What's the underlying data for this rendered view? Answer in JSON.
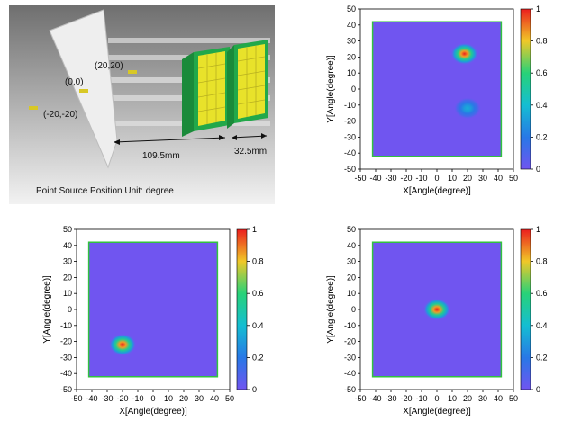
{
  "setup": {
    "positions": [
      {
        "label": "(20,20)"
      },
      {
        "label": "(0,0)"
      },
      {
        "label": "(-20,-20)"
      }
    ],
    "dim_long": "109.5mm",
    "dim_short": "32.5mm",
    "caption": "Point Source Position Unit: degree",
    "colors": {
      "background_top": "#6f6f6f",
      "background_bottom": "#f2f2f2",
      "crystal": "#e8e22a",
      "frame": "#22a84a",
      "rod": "#c8c8c8"
    }
  },
  "chart_data": [
    {
      "type": "heatmap",
      "title": "",
      "xlabel": "X[Angle(degree)]",
      "ylabel": "Y[Angle(degree)]",
      "xlim": [
        -50,
        50
      ],
      "ylim": [
        -50,
        50
      ],
      "x_ticks": [
        "-50",
        "-40",
        "-30",
        "-20",
        "-10",
        "0",
        "10",
        "20",
        "30",
        "40",
        "50"
      ],
      "y_ticks": [
        "-50",
        "-40",
        "-30",
        "-20",
        "-10",
        "0",
        "10",
        "20",
        "30",
        "40",
        "50"
      ],
      "colorbar_ticks": [
        "0",
        "0.2",
        "0.4",
        "0.6",
        "0.8",
        "1"
      ],
      "colorbar_range": [
        0,
        1
      ],
      "field_of_view": [
        -42,
        42
      ],
      "peaks": [
        {
          "x": 18,
          "y": 22,
          "value": 1.0
        },
        {
          "x": 20,
          "y": -12,
          "value": 0.35
        }
      ],
      "colors": {
        "background": "#7055f0",
        "frame": "#31c23f"
      }
    },
    {
      "type": "heatmap",
      "title": "",
      "xlabel": "X[Angle(degree)]",
      "ylabel": "Y[Angle(degree)]",
      "xlim": [
        -50,
        50
      ],
      "ylim": [
        -50,
        50
      ],
      "x_ticks": [
        "-50",
        "-40",
        "-30",
        "-20",
        "-10",
        "0",
        "10",
        "20",
        "30",
        "40",
        "50"
      ],
      "y_ticks": [
        "-50",
        "-40",
        "-30",
        "-20",
        "-10",
        "0",
        "10",
        "20",
        "30",
        "40",
        "50"
      ],
      "colorbar_ticks": [
        "0",
        "0.2",
        "0.4",
        "0.6",
        "0.8",
        "1"
      ],
      "colorbar_range": [
        0,
        1
      ],
      "field_of_view": [
        -42,
        42
      ],
      "peaks": [
        {
          "x": -20,
          "y": -22,
          "value": 1.0
        }
      ],
      "colors": {
        "background": "#7055f0",
        "frame": "#31c23f"
      }
    },
    {
      "type": "heatmap",
      "title": "",
      "xlabel": "X[Angle(degree)]",
      "ylabel": "Y[Angle(degree)]",
      "xlim": [
        -50,
        50
      ],
      "ylim": [
        -50,
        50
      ],
      "x_ticks": [
        "-50",
        "-40",
        "-30",
        "-20",
        "-10",
        "0",
        "10",
        "20",
        "30",
        "40",
        "50"
      ],
      "y_ticks": [
        "-50",
        "-40",
        "-30",
        "-20",
        "-10",
        "0",
        "10",
        "20",
        "30",
        "40",
        "50"
      ],
      "colorbar_ticks": [
        "0",
        "0.2",
        "0.4",
        "0.6",
        "0.8",
        "1"
      ],
      "colorbar_range": [
        0,
        1
      ],
      "field_of_view": [
        -42,
        42
      ],
      "peaks": [
        {
          "x": 0,
          "y": 0,
          "value": 1.0
        }
      ],
      "colors": {
        "background": "#7055f0",
        "frame": "#31c23f"
      }
    }
  ]
}
